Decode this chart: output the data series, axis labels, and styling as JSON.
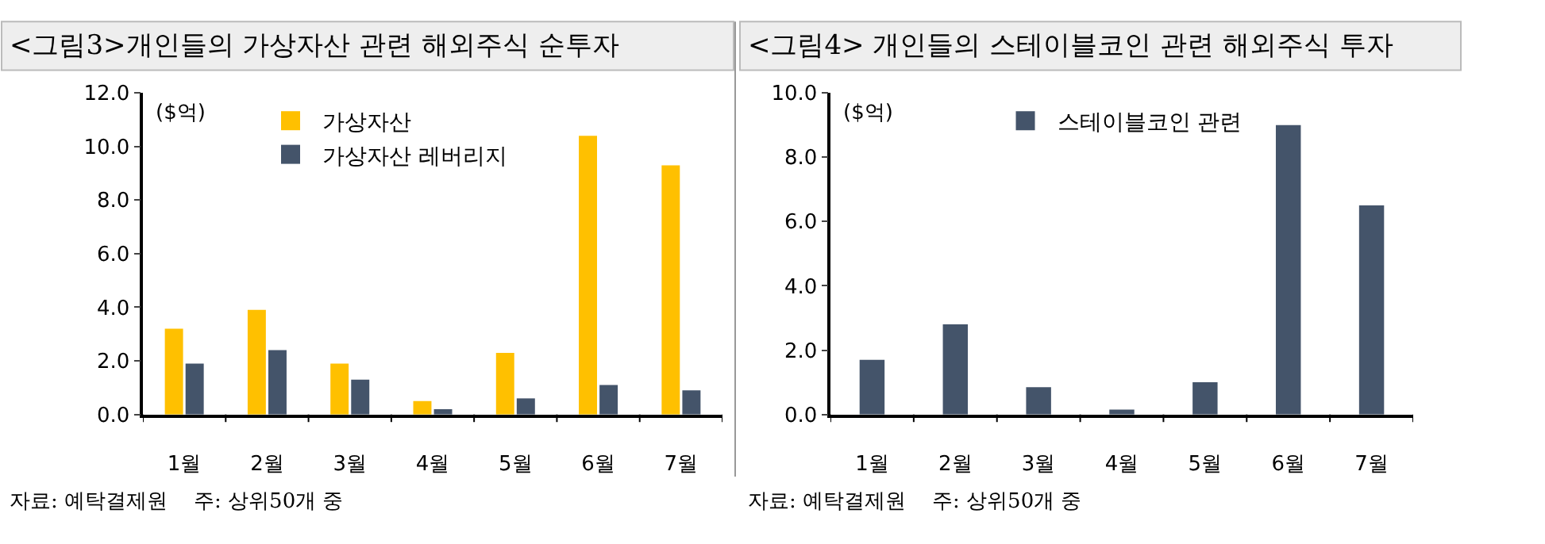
{
  "chart_data": [
    {
      "type": "bar",
      "title": "<그림3>개인들의 가상자산 관련 해외주식 순투자",
      "ylabel": "($억)",
      "categories": [
        "1월",
        "2월",
        "3월",
        "4월",
        "5월",
        "6월",
        "7월"
      ],
      "series": [
        {
          "name": "가상자산",
          "color": "#ffc000",
          "values": [
            3.2,
            3.9,
            1.9,
            0.5,
            2.3,
            10.4,
            9.3
          ]
        },
        {
          "name": "가상자산 레버리지",
          "color": "#44546a",
          "values": [
            1.9,
            2.4,
            1.3,
            0.2,
            0.6,
            1.1,
            0.9
          ]
        }
      ],
      "ylim": [
        0,
        12
      ],
      "yticks": [
        {
          "value": 0,
          "label": "0.0"
        },
        {
          "value": 2,
          "label": "2.0"
        },
        {
          "value": 4,
          "label": "4.0"
        },
        {
          "value": 6,
          "label": "6.0"
        },
        {
          "value": 8,
          "label": "8.0"
        },
        {
          "value": 10,
          "label": "10.0"
        },
        {
          "value": 12,
          "label": "12.0"
        }
      ],
      "legend": "top",
      "annotations": [
        "자료: 예탁결제원    주: 상위50개 중"
      ]
    },
    {
      "type": "bar",
      "title": "<그림4> 개인들의 스테이블코인 관련 해외주식 투자",
      "ylabel": "($억)",
      "categories": [
        "1월",
        "2월",
        "3월",
        "4월",
        "5월",
        "6월",
        "7월"
      ],
      "series": [
        {
          "name": "스테이블코인 관련",
          "color": "#44546a",
          "values": [
            1.7,
            2.8,
            0.85,
            0.15,
            1.0,
            9.0,
            6.5
          ]
        }
      ],
      "ylim": [
        0,
        10
      ],
      "yticks": [
        {
          "value": 0,
          "label": "0.0"
        },
        {
          "value": 2,
          "label": "2.0"
        },
        {
          "value": 4,
          "label": "4.0"
        },
        {
          "value": 6,
          "label": "6.0"
        },
        {
          "value": 8,
          "label": "8.0"
        },
        {
          "value": 10,
          "label": "10.0"
        }
      ],
      "legend": "top",
      "annotations": [
        "자료: 예탁결제원    주: 상위50개 중"
      ]
    }
  ]
}
